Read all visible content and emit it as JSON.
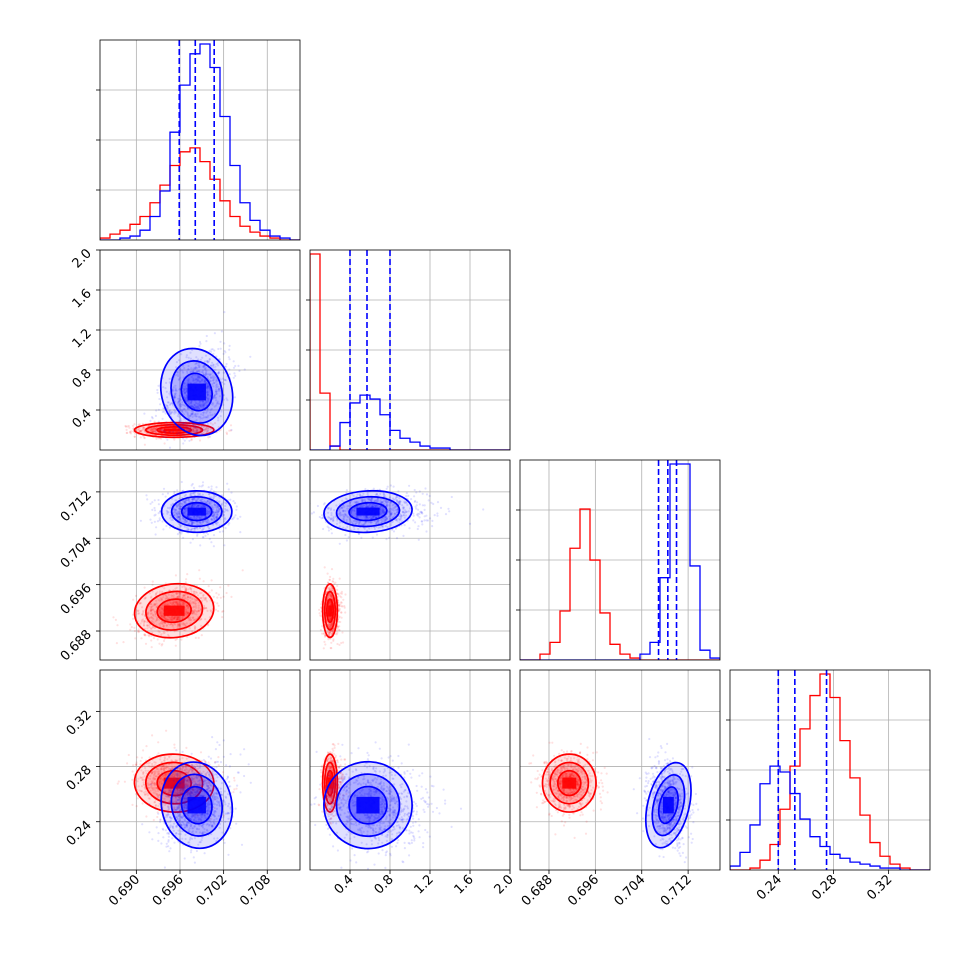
{
  "chart_data": {
    "type": "corner",
    "title": "",
    "grid": true,
    "colors": {
      "red": "#ff0000",
      "blue": "#0000ff",
      "grid": "#b0b0b0"
    },
    "parameters": [
      {
        "id": "p0",
        "range": [
          0.685,
          0.7125
        ],
        "ticks": [
          0.69,
          0.696,
          0.702,
          0.708
        ],
        "tick_labels": [
          "0.690",
          "0.696",
          "0.702",
          "0.708"
        ]
      },
      {
        "id": "p1",
        "range": [
          0.0,
          2.0
        ],
        "ticks": [
          0.4,
          0.8,
          1.2,
          1.6,
          2.0
        ],
        "tick_labels": [
          "0.4",
          "0.8",
          "1.2",
          "1.6",
          "2.0"
        ]
      },
      {
        "id": "p2",
        "range": [
          0.683,
          0.7175
        ],
        "ticks": [
          0.688,
          0.696,
          0.704,
          0.712
        ],
        "tick_labels": [
          "0.688",
          "0.696",
          "0.704",
          "0.712"
        ]
      },
      {
        "id": "p3",
        "range": [
          0.205,
          0.35
        ],
        "ticks": [
          0.24,
          0.28,
          0.32
        ],
        "tick_labels": [
          "0.24",
          "0.28",
          "0.32"
        ]
      }
    ],
    "series": [
      {
        "color": "red",
        "means": [
          0.6952,
          0.2,
          0.6915,
          0.268
        ],
        "sds": [
          0.0026,
          0.035,
          0.0022,
          0.01
        ],
        "correlations": [
          [
            0,
            1,
            0.0
          ],
          [
            0,
            2,
            0.3
          ],
          [
            0,
            3,
            -0.1
          ],
          [
            1,
            2,
            0.0
          ],
          [
            1,
            3,
            0.0
          ],
          [
            2,
            3,
            0.0
          ]
        ],
        "quantile_lines": false,
        "hist_counts": [
          [
            1,
            3,
            5,
            8,
            12,
            19,
            28,
            38,
            45,
            47,
            40,
            31,
            20,
            12,
            7,
            4,
            2,
            1,
            0,
            0
          ],
          [
            100,
            29,
            2,
            0,
            0,
            0,
            0,
            0,
            0,
            0,
            0,
            0,
            0,
            0,
            0,
            0,
            0,
            0,
            0,
            0
          ],
          [
            0,
            0,
            3,
            9,
            25,
            57,
            77,
            51,
            24,
            8,
            3,
            1,
            0,
            0,
            0,
            0,
            0,
            0,
            0,
            0
          ],
          [
            0,
            0,
            1,
            5,
            13,
            31,
            53,
            72,
            89,
            100,
            88,
            66,
            47,
            28,
            14,
            7,
            3,
            1,
            0,
            0
          ]
        ]
      },
      {
        "color": "blue",
        "means": [
          0.6983,
          0.58,
          0.7086,
          0.252
        ],
        "sds": [
          0.0023,
          0.21,
          0.0017,
          0.015
        ],
        "correlations": [
          [
            0,
            1,
            0.4
          ],
          [
            0,
            2,
            0.0
          ],
          [
            0,
            3,
            0.3
          ],
          [
            1,
            2,
            0.2
          ],
          [
            1,
            3,
            -0.1
          ],
          [
            2,
            3,
            -0.2
          ]
        ],
        "quantile_lines": true,
        "quantiles": [
          [
            0.6959,
            0.6981,
            0.7007
          ],
          [
            0.4,
            0.57,
            0.8
          ],
          [
            0.7069,
            0.7085,
            0.71
          ],
          [
            0.24,
            0.252,
            0.275
          ]
        ],
        "hist_counts": [
          [
            0,
            0,
            1,
            2,
            5,
            12,
            25,
            55,
            79,
            95,
            100,
            88,
            63,
            38,
            19,
            10,
            5,
            2,
            1,
            0
          ],
          [
            0,
            0,
            2,
            14,
            24,
            28,
            26,
            18,
            10,
            6,
            4,
            2,
            1,
            1,
            0,
            0,
            0,
            0,
            0,
            0
          ],
          [
            0,
            0,
            0,
            0,
            0,
            0,
            0,
            0,
            0,
            0,
            0,
            0,
            3,
            9,
            42,
            100,
            100,
            48,
            5,
            1
          ],
          [
            2,
            9,
            23,
            44,
            53,
            50,
            39,
            26,
            17,
            12,
            8,
            6,
            4,
            3,
            2,
            1,
            1,
            0,
            0,
            0
          ]
        ]
      }
    ]
  }
}
